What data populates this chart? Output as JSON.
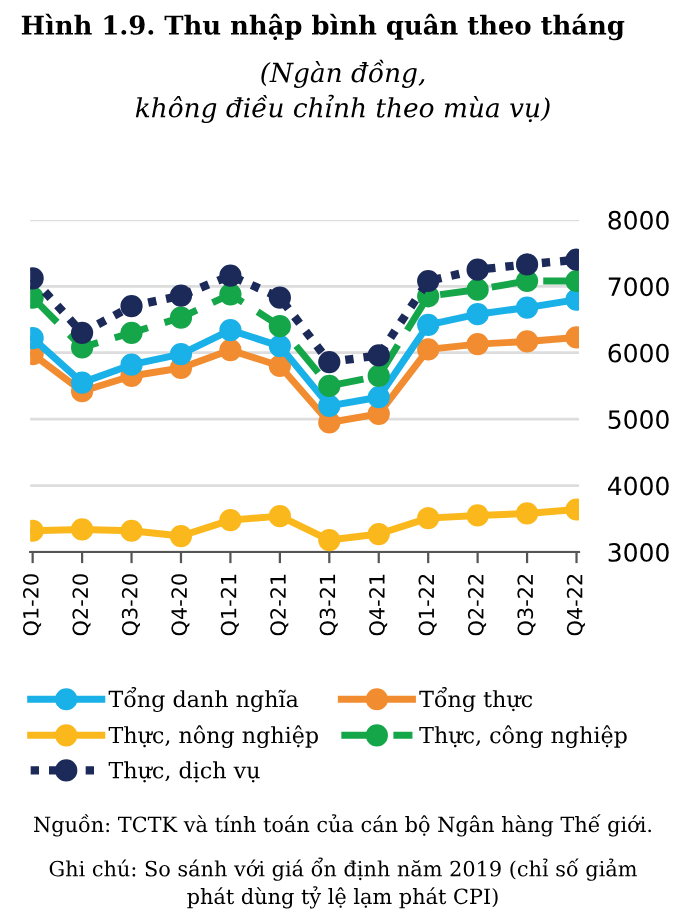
{
  "chart_data": {
    "type": "line",
    "title": "Hình 1.9. Thu nhập bình quân theo tháng",
    "subtitle": "(Ngàn đồng,\nkhông điều chỉnh theo mùa vụ)",
    "categories": [
      "Q1-20",
      "Q2-20",
      "Q3-20",
      "Q4-20",
      "Q1-21",
      "Q2-21",
      "Q3-21",
      "Q4-21",
      "Q1-22",
      "Q2-22",
      "Q3-22",
      "Q4-22"
    ],
    "series": [
      {
        "name": "Tổng danh nghĩa",
        "color": "#1ab0e8",
        "line_style": "solid",
        "values": [
          6220,
          5550,
          5820,
          5980,
          6340,
          6100,
          5200,
          5330,
          6420,
          6580,
          6680,
          6800
        ]
      },
      {
        "name": "Tổng thực",
        "color": "#f28c30",
        "line_style": "solid",
        "values": [
          5980,
          5420,
          5650,
          5770,
          6040,
          5800,
          4950,
          5080,
          6050,
          6130,
          6170,
          6230
        ]
      },
      {
        "name": "Thực, nông nghiệp",
        "color": "#fbb81c",
        "line_style": "solid",
        "values": [
          3320,
          3340,
          3320,
          3240,
          3480,
          3540,
          3180,
          3270,
          3510,
          3550,
          3580,
          3640
        ]
      },
      {
        "name": "Thực, công nghiệp",
        "color": "#16a64a",
        "line_style": "dashed",
        "values": [
          6830,
          6080,
          6300,
          6530,
          6880,
          6400,
          5500,
          5650,
          6850,
          6950,
          7080,
          7080
        ]
      },
      {
        "name": "Thực, dịch vụ",
        "color": "#1c2a5a",
        "line_style": "dotted",
        "values": [
          7120,
          6300,
          6700,
          6860,
          7160,
          6830,
          5860,
          5960,
          7080,
          7250,
          7330,
          7400
        ]
      }
    ],
    "ylim": [
      3000,
      8000
    ],
    "yticks": [
      3000,
      4000,
      5000,
      6000,
      7000,
      8000
    ],
    "grid": "y",
    "legend": "bottom",
    "marker": "circle",
    "annotations": [
      "Nguồn: TCTK và tính toán của cán bộ Ngân hàng Thế giới.",
      "Ghi chú: So sánh với giá ổn định năm 2019 (chỉ số giảm\nphát dùng tỷ lệ lạm phát CPI)"
    ]
  }
}
